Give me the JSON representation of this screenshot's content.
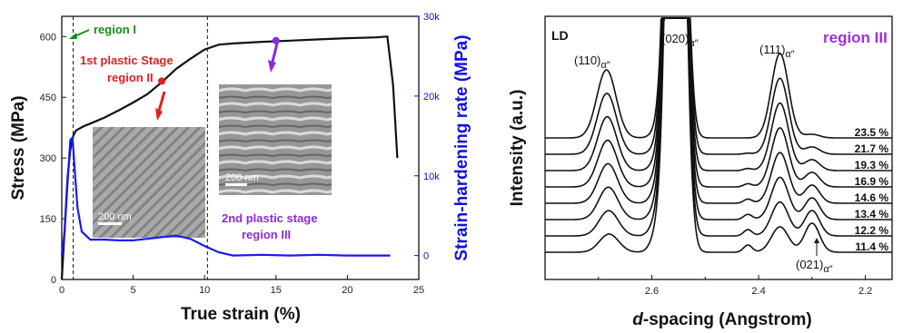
{
  "colors": {
    "stress": "#111111",
    "hardening": "#1a1af0",
    "region_I": "#1a8a1a",
    "stage_II": "#e02020",
    "stage_III": "#8a2be2",
    "region_III_title": "#9b30e0"
  },
  "left_panel": {
    "xlabel": "True strain (%)",
    "ylabel_left": "Stress (MPa)",
    "ylabel_right": "Strain-hardening rate (MPa)",
    "xlim": [
      0,
      25
    ],
    "ylim_left": [
      0,
      650
    ],
    "ylim_right": [
      -3000,
      30000
    ],
    "xticks": [
      "0",
      "5",
      "10",
      "15",
      "20",
      "25"
    ],
    "yticks_left": [
      "0",
      "150",
      "300",
      "450",
      "600"
    ],
    "yticks_right": [
      "0",
      "10k",
      "20k",
      "30k"
    ],
    "dashed_lines_at_strain": [
      0.8,
      10.2
    ],
    "annotations": {
      "region_I": "region I",
      "stage_II_line1": "1st plastic Stage",
      "stage_II_line2": "region II",
      "stage_III_line1": "2nd plastic stage",
      "stage_III_line2": "region III",
      "scalebar_1": "200 nm",
      "scalebar_2": "200 nm"
    },
    "markers": [
      {
        "series": "stress",
        "x": 7.0,
        "y": 490,
        "color_key": "stage_II"
      },
      {
        "series": "stress",
        "x": 15.0,
        "y": 590,
        "color_key": "stage_III"
      }
    ],
    "insets": [
      {
        "name": "tem-inset-region-II",
        "description_label": "200 nm"
      },
      {
        "name": "tem-inset-region-III",
        "description_label": "200 nm"
      }
    ]
  },
  "right_panel": {
    "xlabel_italic": "d",
    "xlabel_rest": "-spacing (Angstrom)",
    "ylabel": "Intensity (a.u.)",
    "xlim": [
      2.8,
      2.15
    ],
    "xticks": [
      "2.6",
      "2.4",
      "2.2"
    ],
    "corner_label": "LD",
    "title": "region III",
    "peak_labels": {
      "p110": "(110)",
      "p020": "(020)",
      "p111": "(111)",
      "p021": "(021)",
      "subscript": "α″"
    },
    "strain_labels": [
      "11.4 %",
      "12.2 %",
      "13.4 %",
      "14.6 %",
      "16.9 %",
      "19.3 %",
      "21.7 %",
      "23.5 %"
    ]
  },
  "chart_data": [
    {
      "type": "line",
      "title": "",
      "xlabel": "True strain (%)",
      "ylabel": "Stress (MPa)",
      "y2label": "Strain-hardening rate (MPa)",
      "xlim": [
        0,
        25
      ],
      "ylim": [
        0,
        650
      ],
      "y2lim": [
        -3000,
        30000
      ],
      "series": [
        {
          "axis": "left",
          "color": "#111111",
          "x": [
            0,
            0.2,
            0.4,
            0.6,
            0.8,
            1.0,
            1.5,
            2,
            3,
            4,
            5,
            6,
            7,
            8,
            9,
            10,
            11,
            12,
            14,
            16,
            18,
            20,
            22,
            22.8,
            23.2,
            23.5
          ],
          "y": [
            0,
            120,
            250,
            320,
            355,
            368,
            378,
            385,
            400,
            418,
            437,
            458,
            487,
            520,
            545,
            568,
            580,
            583,
            587,
            590,
            593,
            596,
            598,
            600,
            480,
            300
          ]
        },
        {
          "axis": "right",
          "color": "#1a1af0",
          "x": [
            0,
            0.2,
            0.4,
            0.6,
            0.75,
            0.9,
            1.1,
            1.4,
            2,
            3,
            4,
            5,
            6,
            7,
            8,
            9,
            10,
            11,
            12,
            14,
            16,
            18,
            20,
            22,
            23
          ],
          "y": [
            0,
            3000,
            9000,
            14500,
            14800,
            11000,
            6000,
            3000,
            2000,
            2000,
            1900,
            1900,
            2100,
            2300,
            2500,
            2100,
            1200,
            400,
            0,
            100,
            0,
            100,
            0,
            0,
            0
          ]
        }
      ]
    },
    {
      "type": "line",
      "title": "region III",
      "xlabel": "d-spacing (Angstrom)",
      "ylabel": "Intensity (a.u.)",
      "xlim": [
        2.8,
        2.15
      ],
      "series": [
        {
          "name": "11.4 %",
          "offset": 0
        },
        {
          "name": "12.2 %",
          "offset": 1
        },
        {
          "name": "13.4 %",
          "offset": 2
        },
        {
          "name": "14.6 %",
          "offset": 3
        },
        {
          "name": "16.9 %",
          "offset": 4
        },
        {
          "name": "19.3 %",
          "offset": 5
        },
        {
          "name": "21.7 %",
          "offset": 6
        },
        {
          "name": "23.5 %",
          "offset": 7
        }
      ],
      "peaks_d_spacing": {
        "110": 2.68,
        "020": 2.59,
        "111": 2.36,
        "021": 2.3
      }
    }
  ]
}
